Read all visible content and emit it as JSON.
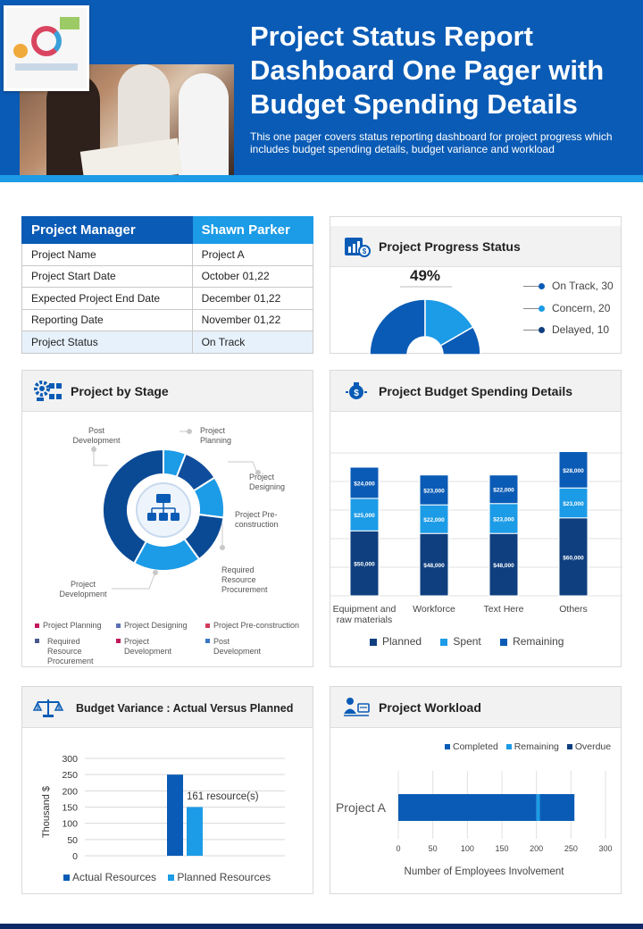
{
  "header": {
    "title": "Project Status Report Dashboard One Pager with Budget Spending Details",
    "subtitle": "This one pager covers status reporting dashboard for project progress which includes budget spending details, budget variance and workload"
  },
  "manager_table": {
    "header_left": "Project Manager",
    "header_right": "Shawn Parker",
    "rows": [
      {
        "label": "Project Name",
        "value": "Project A"
      },
      {
        "label": "Project Start Date",
        "value": "October 01,22"
      },
      {
        "label": "Expected Project End Date",
        "value": "December 01,22"
      },
      {
        "label": "Reporting Date",
        "value": "November 01,22"
      },
      {
        "label": "Project Status",
        "value": "On Track"
      }
    ]
  },
  "progress": {
    "title": "Project Progress Status",
    "percent_label": "49%",
    "legend": [
      "On Track, 30",
      "Concern, 20",
      "Delayed, 10"
    ]
  },
  "stage": {
    "title": "Project by Stage",
    "labels": {
      "post_development": "Post Development",
      "project_planning": "Project Planning",
      "project_designing": "Project Designing",
      "pre_construction": "Project Pre-construction",
      "resource_procurement": "Required Resource Procurement",
      "project_development": "Project Development"
    },
    "legend": [
      "Project Planning",
      "Project Designing",
      "Project Pre-construction",
      "Required Resource Procurement",
      "Project Development",
      "Post Development"
    ]
  },
  "budget": {
    "title": "Project Budget Spending Details",
    "legend": [
      "Planned",
      "Spent",
      "Remaining"
    ]
  },
  "variance": {
    "title": "Budget Variance : Actual Versus Planned",
    "annotation": "161 resource(s)",
    "legend": [
      "Actual Resources",
      "Planned Resources"
    ]
  },
  "workload": {
    "title": "Project Workload",
    "legend": [
      "Completed",
      "Remaining",
      "Overdue"
    ]
  },
  "colors": {
    "primary": "#0a5bb5",
    "accent": "#1c9be6",
    "dark": "#0f3f7f",
    "navy": "#0d2a66"
  },
  "chart_data": [
    {
      "type": "pie",
      "id": "progress",
      "labels": [
        "On Track",
        "Concern",
        "Delayed"
      ],
      "values": [
        30,
        20,
        10
      ],
      "center_label": "49%"
    },
    {
      "type": "pie",
      "id": "stage",
      "labels": [
        "Project Planning",
        "Project Designing",
        "Project Pre-construction",
        "Required Resource Procurement",
        "Project Development",
        "Post Development"
      ],
      "values": [
        6,
        10,
        11,
        13,
        18,
        42
      ]
    },
    {
      "type": "bar",
      "id": "budget",
      "stacked": true,
      "categories": [
        "Equipment and raw materials",
        "Workforce",
        "Text Here",
        "Others"
      ],
      "series": [
        {
          "name": "Planned",
          "values": [
            50000,
            48000,
            48000,
            60000
          ],
          "labels": [
            "$50,000",
            "$48,000",
            "$48,000",
            "$60,000"
          ]
        },
        {
          "name": "Spent",
          "values": [
            25000,
            22000,
            23000,
            23000
          ],
          "labels": [
            "$25,000",
            "$22,000",
            "$23,000",
            "$23,000"
          ]
        },
        {
          "name": "Remaining",
          "values": [
            24000,
            23000,
            22000,
            28000
          ],
          "labels": [
            "$24,000",
            "$23,000",
            "$22,000",
            "$28,000"
          ]
        }
      ],
      "ylim": [
        0,
        110000
      ],
      "grid": true,
      "legend": "bottom"
    },
    {
      "type": "bar",
      "id": "variance",
      "categories": [
        ""
      ],
      "series": [
        {
          "name": "Actual Resources",
          "values": [
            250
          ]
        },
        {
          "name": "Planned Resources",
          "values": [
            150
          ]
        }
      ],
      "ylabel": "Thousand $",
      "ylim": [
        0,
        300
      ],
      "yticks": [
        0,
        50,
        100,
        150,
        200,
        250,
        300
      ],
      "grid": true,
      "legend": "bottom"
    },
    {
      "type": "bar",
      "id": "workload",
      "orientation": "horizontal",
      "stacked": true,
      "categories": [
        "Project A"
      ],
      "series": [
        {
          "name": "Completed",
          "values": [
            200
          ]
        },
        {
          "name": "Remaining",
          "values": [
            5
          ]
        },
        {
          "name": "Overdue",
          "values": [
            50
          ]
        }
      ],
      "xlabel": "Number of Employees Involvement",
      "xlim": [
        0,
        300
      ],
      "xticks": [
        0,
        50,
        100,
        150,
        200,
        250,
        300
      ],
      "grid": true,
      "legend": "top"
    }
  ]
}
